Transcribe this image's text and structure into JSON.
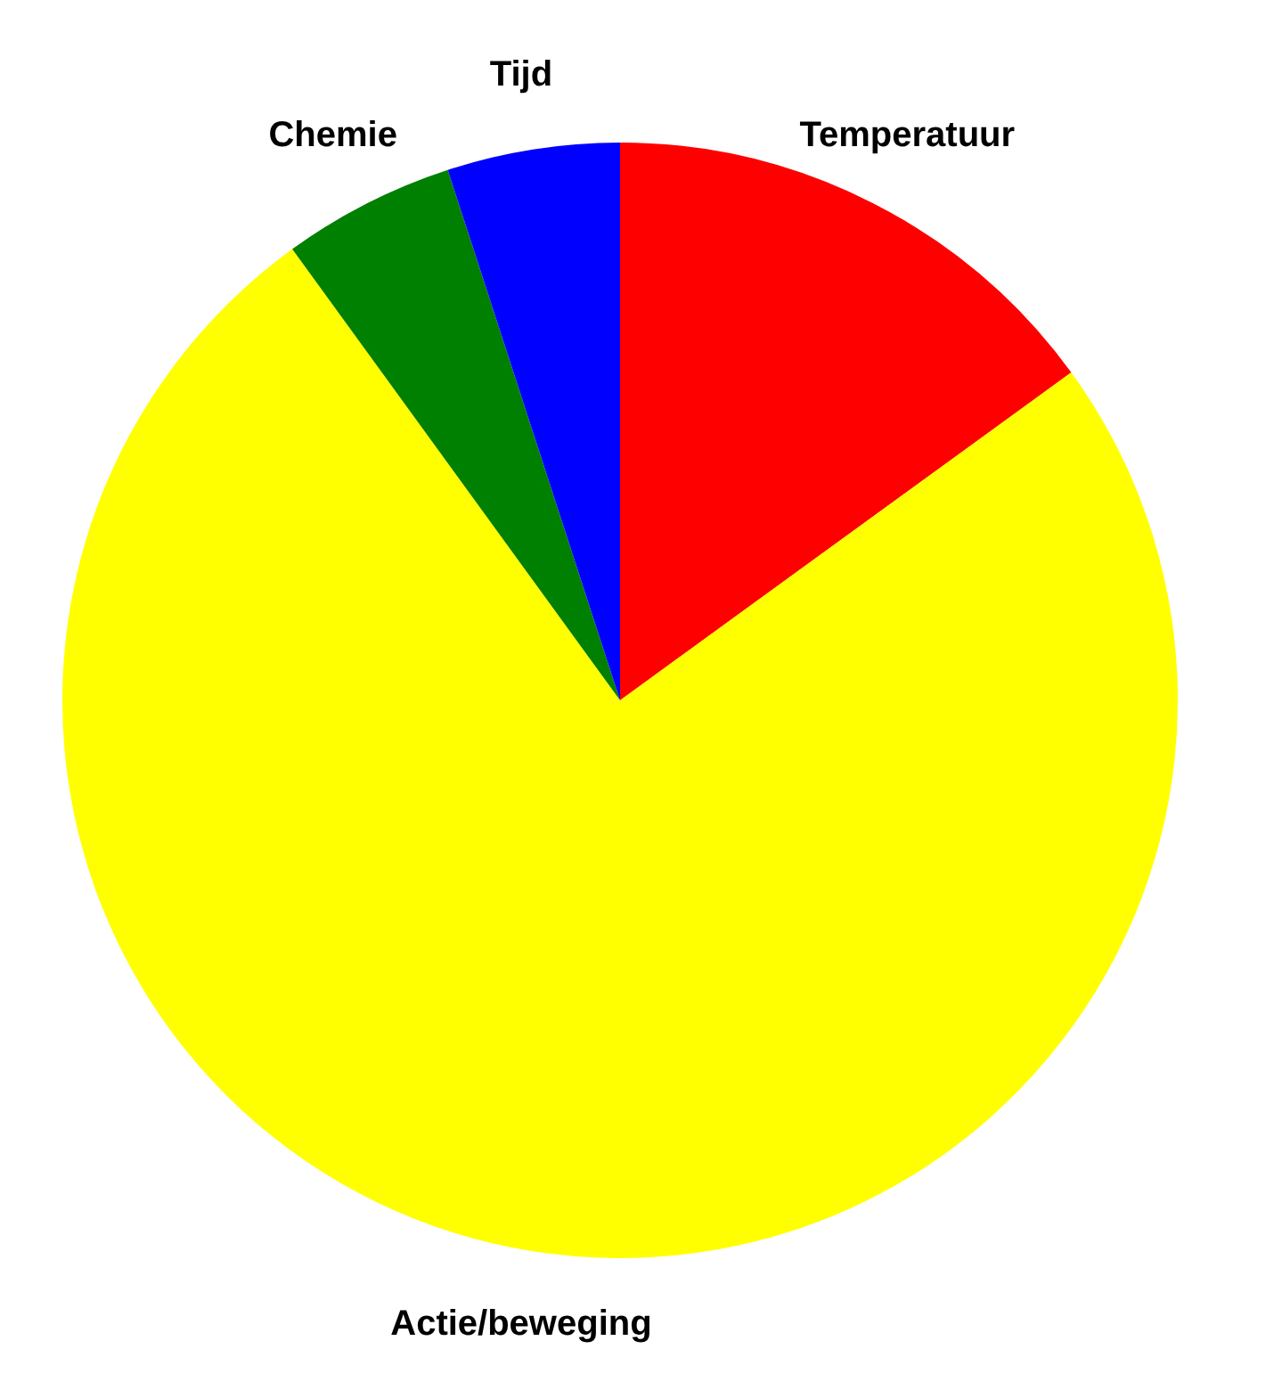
{
  "chart_data": {
    "type": "pie",
    "categories": [
      "Temperatuur",
      "Actie/beweging",
      "Chemie",
      "Tijd"
    ],
    "values": [
      15,
      75,
      5,
      5
    ],
    "colors": [
      "#ff0000",
      "#ffff00",
      "#008000",
      "#0000ff"
    ],
    "legend": false
  }
}
